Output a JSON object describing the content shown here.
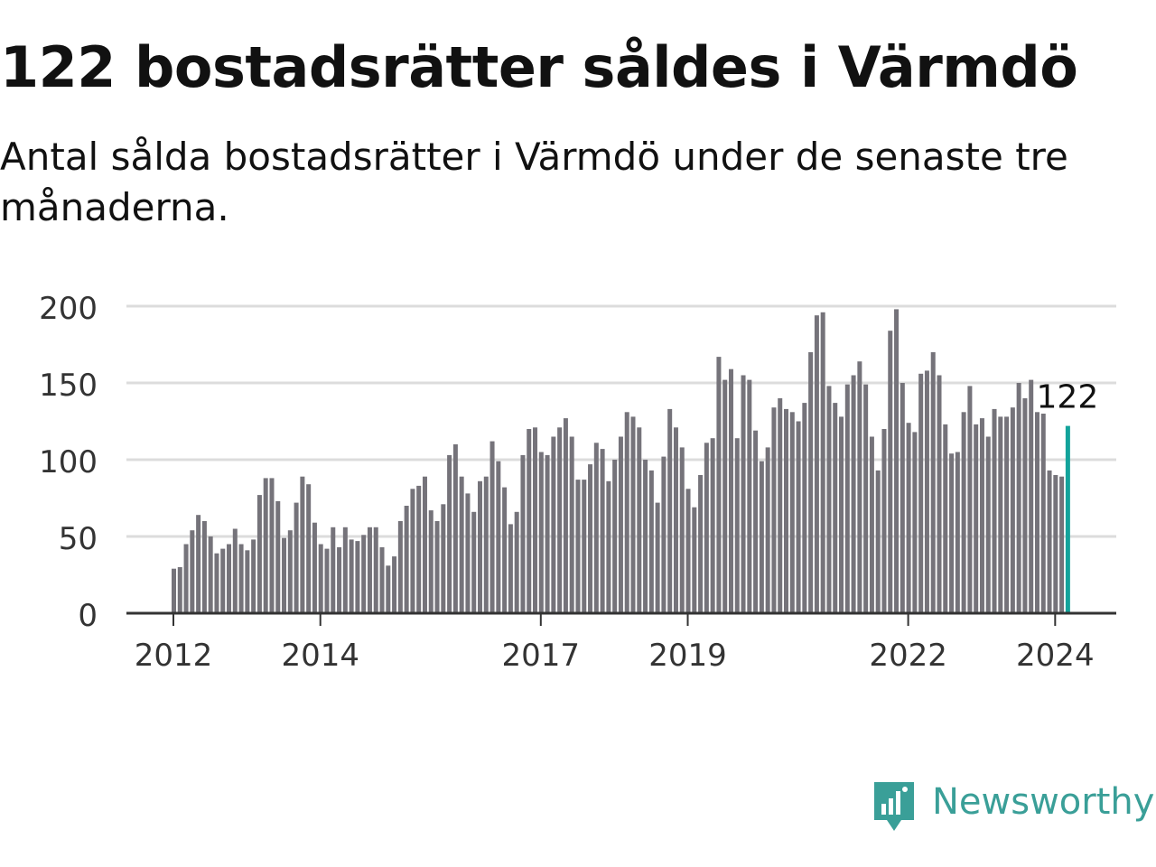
{
  "title": "122 bostadsrätter såldes i Värmdö",
  "subtitle": "Antal sålda bostadsrätter i Värmdö under de senaste tre månaderna.",
  "brand": {
    "name": "Newsworthy",
    "icon": "newsworthy-chart-bubble-icon",
    "color": "#3a9f98"
  },
  "colors": {
    "bar": "#75737a",
    "highlight": "#13a39b",
    "grid": "#dcdcdc",
    "axis": "#333333",
    "text": "#333333"
  },
  "chart_data": {
    "type": "bar",
    "title": "122 bostadsrätter såldes i Värmdö",
    "subtitle": "Antal sålda bostadsrätter i Värmdö under de senaste tre månaderna.",
    "xlabel": "",
    "ylabel": "",
    "ylim": [
      0,
      200
    ],
    "yticks": [
      0,
      50,
      100,
      150,
      200
    ],
    "grid": true,
    "x_tick_labels": [
      {
        "label": "2012",
        "index": 0
      },
      {
        "label": "2014",
        "index": 24
      },
      {
        "label": "2017",
        "index": 60
      },
      {
        "label": "2019",
        "index": 84
      },
      {
        "label": "2022",
        "index": 120
      },
      {
        "label": "2024",
        "index": 144
      }
    ],
    "highlight": {
      "index": 146,
      "label": "122"
    },
    "values": [
      29,
      30,
      45,
      54,
      64,
      60,
      50,
      39,
      42,
      45,
      55,
      45,
      41,
      48,
      77,
      88,
      88,
      73,
      49,
      54,
      72,
      89,
      84,
      59,
      45,
      42,
      56,
      43,
      56,
      48,
      47,
      51,
      56,
      56,
      43,
      31,
      37,
      60,
      70,
      81,
      83,
      89,
      67,
      60,
      71,
      103,
      110,
      89,
      78,
      66,
      86,
      89,
      112,
      99,
      82,
      58,
      66,
      103,
      120,
      121,
      105,
      103,
      115,
      121,
      127,
      115,
      87,
      87,
      97,
      111,
      107,
      86,
      100,
      115,
      131,
      128,
      121,
      100,
      93,
      72,
      102,
      133,
      121,
      108,
      81,
      69,
      90,
      111,
      114,
      167,
      152,
      159,
      114,
      155,
      152,
      119,
      99,
      108,
      134,
      140,
      133,
      131,
      125,
      137,
      170,
      194,
      196,
      148,
      137,
      128,
      149,
      155,
      164,
      149,
      115,
      93,
      120,
      184,
      198,
      150,
      124,
      118,
      156,
      158,
      170,
      155,
      123,
      104,
      105,
      131,
      148,
      123,
      127,
      115,
      133,
      128,
      128,
      134,
      150,
      140,
      152,
      131,
      130,
      93,
      90,
      89,
      122
    ]
  }
}
